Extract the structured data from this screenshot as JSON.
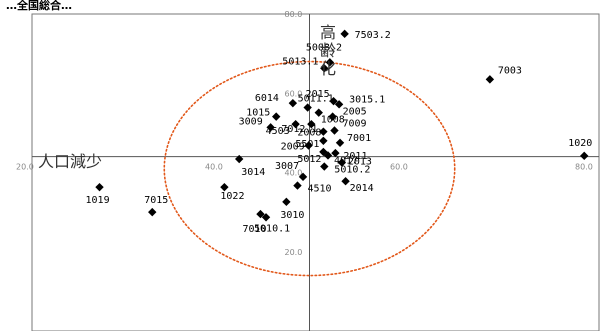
{
  "chart_data": {
    "type": "scatter",
    "title": "…全国総合…",
    "xlim": [
      20,
      80
    ],
    "ylim": [
      0,
      80
    ],
    "x_ticks": [
      {
        "label": "20.0",
        "value": 20
      },
      {
        "label": "40.0",
        "value": 40
      },
      {
        "label": "60.0",
        "value": 60
      },
      {
        "label": "80.0",
        "value": 80
      }
    ],
    "y_ticks": [
      {
        "label": "80.0",
        "value": 80
      },
      {
        "label": "60.0",
        "value": 60
      },
      {
        "label": "40.0",
        "value": 40
      },
      {
        "label": "20.0",
        "value": 20
      }
    ],
    "x_axis_label": "人口減少",
    "y_axis_label": [
      "高",
      "齢",
      "化"
    ],
    "highlight_circle": {
      "cx": 50,
      "cy": 41,
      "rx": 15.7,
      "ry": 27.0,
      "color": "#e2581a"
    },
    "points": [
      {
        "label": "7503.2",
        "x": 53.8,
        "y": 75.0
      },
      {
        "label": "7003",
        "x": 69.5,
        "y": 63.5
      },
      {
        "label": "1020",
        "x": 79.7,
        "y": 44.2
      },
      {
        "label": "5008.2",
        "x": 52.2,
        "y": 67.8
      },
      {
        "label": "5013.1",
        "x": 51.6,
        "y": 66.3
      },
      {
        "label": "2015",
        "x": 52.6,
        "y": 58.0
      },
      {
        "label": "3015.1",
        "x": 53.2,
        "y": 57.2
      },
      {
        "label": "6014",
        "x": 48.2,
        "y": 57.5
      },
      {
        "label": "5011.1",
        "x": 49.8,
        "y": 56.4
      },
      {
        "label": "1015",
        "x": 46.4,
        "y": 54.1
      },
      {
        "label": "4503",
        "x": 48.5,
        "y": 52.2
      },
      {
        "label": "1008",
        "x": 51.0,
        "y": 55.1
      },
      {
        "label": "2005",
        "x": 52.5,
        "y": 54.1
      },
      {
        "label": "3009",
        "x": 45.8,
        "y": 51.4
      },
      {
        "label": "7012.1",
        "x": 50.2,
        "y": 52.2
      },
      {
        "label": "7009",
        "x": 52.7,
        "y": 50.6
      },
      {
        "label": "2008",
        "x": 51.5,
        "y": 50.3
      },
      {
        "label": "7001",
        "x": 53.3,
        "y": 47.5
      },
      {
        "label": "5501",
        "x": 51.5,
        "y": 48.0
      },
      {
        "label": "2011",
        "x": 52.8,
        "y": 44.9
      },
      {
        "label": "2009",
        "x": 49.9,
        "y": 46.8
      },
      {
        "label": "5012",
        "x": 51.5,
        "y": 45.2
      },
      {
        "label": "4017",
        "x": 52.0,
        "y": 44.3
      },
      {
        "label": "5010.2",
        "x": 51.6,
        "y": 41.5
      },
      {
        "label": "2013",
        "x": 53.5,
        "y": 42.5
      },
      {
        "label": "2014",
        "x": 53.9,
        "y": 37.8
      },
      {
        "label": "3007",
        "x": 49.3,
        "y": 38.9
      },
      {
        "label": "4510",
        "x": 48.7,
        "y": 36.7
      },
      {
        "label": "3010",
        "x": 47.5,
        "y": 32.6
      },
      {
        "label": "5010.1",
        "x": 45.3,
        "y": 28.7
      },
      {
        "label": "3014",
        "x": 42.4,
        "y": 43.4
      },
      {
        "label": "1022",
        "x": 40.8,
        "y": 36.3
      },
      {
        "label": "7010",
        "x": 44.7,
        "y": 29.5
      },
      {
        "label": "1019",
        "x": 27.3,
        "y": 36.3
      },
      {
        "label": "7015",
        "x": 33.0,
        "y": 30.0
      }
    ]
  }
}
